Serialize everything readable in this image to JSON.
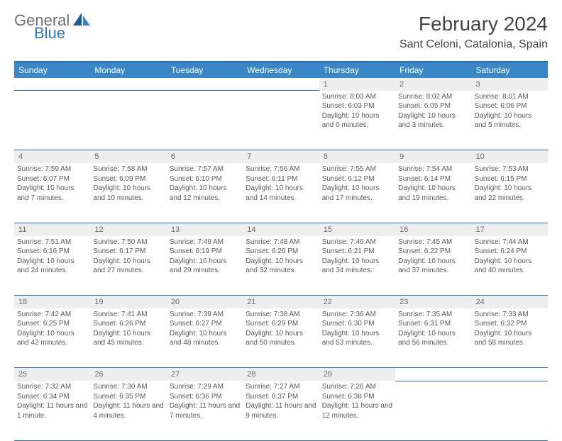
{
  "logo": {
    "text1": "General",
    "text2": "Blue"
  },
  "title": "February 2024",
  "location": "Sant Celoni, Catalonia, Spain",
  "colors": {
    "header_bg": "#3a87c8",
    "header_border": "#2f6fa8",
    "daynum_bg": "#eeeeee",
    "text": "#5a5a5a",
    "logo_gray": "#707070",
    "logo_blue": "#2f78b8"
  },
  "weekdays": [
    "Sunday",
    "Monday",
    "Tuesday",
    "Wednesday",
    "Thursday",
    "Friday",
    "Saturday"
  ],
  "weeks": [
    [
      null,
      null,
      null,
      null,
      {
        "day": "1",
        "sunrise": "Sunrise: 8:03 AM",
        "sunset": "Sunset: 6:03 PM",
        "daylight": "Daylight: 10 hours and 0 minutes."
      },
      {
        "day": "2",
        "sunrise": "Sunrise: 8:02 AM",
        "sunset": "Sunset: 6:05 PM",
        "daylight": "Daylight: 10 hours and 3 minutes."
      },
      {
        "day": "3",
        "sunrise": "Sunrise: 8:01 AM",
        "sunset": "Sunset: 6:06 PM",
        "daylight": "Daylight: 10 hours and 5 minutes."
      }
    ],
    [
      {
        "day": "4",
        "sunrise": "Sunrise: 7:59 AM",
        "sunset": "Sunset: 6:07 PM",
        "daylight": "Daylight: 10 hours and 7 minutes."
      },
      {
        "day": "5",
        "sunrise": "Sunrise: 7:58 AM",
        "sunset": "Sunset: 6:09 PM",
        "daylight": "Daylight: 10 hours and 10 minutes."
      },
      {
        "day": "6",
        "sunrise": "Sunrise: 7:57 AM",
        "sunset": "Sunset: 6:10 PM",
        "daylight": "Daylight: 10 hours and 12 minutes."
      },
      {
        "day": "7",
        "sunrise": "Sunrise: 7:56 AM",
        "sunset": "Sunset: 6:11 PM",
        "daylight": "Daylight: 10 hours and 14 minutes."
      },
      {
        "day": "8",
        "sunrise": "Sunrise: 7:55 AM",
        "sunset": "Sunset: 6:12 PM",
        "daylight": "Daylight: 10 hours and 17 minutes."
      },
      {
        "day": "9",
        "sunrise": "Sunrise: 7:54 AM",
        "sunset": "Sunset: 6:14 PM",
        "daylight": "Daylight: 10 hours and 19 minutes."
      },
      {
        "day": "10",
        "sunrise": "Sunrise: 7:53 AM",
        "sunset": "Sunset: 6:15 PM",
        "daylight": "Daylight: 10 hours and 22 minutes."
      }
    ],
    [
      {
        "day": "11",
        "sunrise": "Sunrise: 7:51 AM",
        "sunset": "Sunset: 6:16 PM",
        "daylight": "Daylight: 10 hours and 24 minutes."
      },
      {
        "day": "12",
        "sunrise": "Sunrise: 7:50 AM",
        "sunset": "Sunset: 6:17 PM",
        "daylight": "Daylight: 10 hours and 27 minutes."
      },
      {
        "day": "13",
        "sunrise": "Sunrise: 7:49 AM",
        "sunset": "Sunset: 6:19 PM",
        "daylight": "Daylight: 10 hours and 29 minutes."
      },
      {
        "day": "14",
        "sunrise": "Sunrise: 7:48 AM",
        "sunset": "Sunset: 6:20 PM",
        "daylight": "Daylight: 10 hours and 32 minutes."
      },
      {
        "day": "15",
        "sunrise": "Sunrise: 7:46 AM",
        "sunset": "Sunset: 6:21 PM",
        "daylight": "Daylight: 10 hours and 34 minutes."
      },
      {
        "day": "16",
        "sunrise": "Sunrise: 7:45 AM",
        "sunset": "Sunset: 6:22 PM",
        "daylight": "Daylight: 10 hours and 37 minutes."
      },
      {
        "day": "17",
        "sunrise": "Sunrise: 7:44 AM",
        "sunset": "Sunset: 6:24 PM",
        "daylight": "Daylight: 10 hours and 40 minutes."
      }
    ],
    [
      {
        "day": "18",
        "sunrise": "Sunrise: 7:42 AM",
        "sunset": "Sunset: 6:25 PM",
        "daylight": "Daylight: 10 hours and 42 minutes."
      },
      {
        "day": "19",
        "sunrise": "Sunrise: 7:41 AM",
        "sunset": "Sunset: 6:26 PM",
        "daylight": "Daylight: 10 hours and 45 minutes."
      },
      {
        "day": "20",
        "sunrise": "Sunrise: 7:39 AM",
        "sunset": "Sunset: 6:27 PM",
        "daylight": "Daylight: 10 hours and 48 minutes."
      },
      {
        "day": "21",
        "sunrise": "Sunrise: 7:38 AM",
        "sunset": "Sunset: 6:29 PM",
        "daylight": "Daylight: 10 hours and 50 minutes."
      },
      {
        "day": "22",
        "sunrise": "Sunrise: 7:36 AM",
        "sunset": "Sunset: 6:30 PM",
        "daylight": "Daylight: 10 hours and 53 minutes."
      },
      {
        "day": "23",
        "sunrise": "Sunrise: 7:35 AM",
        "sunset": "Sunset: 6:31 PM",
        "daylight": "Daylight: 10 hours and 56 minutes."
      },
      {
        "day": "24",
        "sunrise": "Sunrise: 7:33 AM",
        "sunset": "Sunset: 6:32 PM",
        "daylight": "Daylight: 10 hours and 58 minutes."
      }
    ],
    [
      {
        "day": "25",
        "sunrise": "Sunrise: 7:32 AM",
        "sunset": "Sunset: 6:34 PM",
        "daylight": "Daylight: 11 hours and 1 minute."
      },
      {
        "day": "26",
        "sunrise": "Sunrise: 7:30 AM",
        "sunset": "Sunset: 6:35 PM",
        "daylight": "Daylight: 11 hours and 4 minutes."
      },
      {
        "day": "27",
        "sunrise": "Sunrise: 7:29 AM",
        "sunset": "Sunset: 6:36 PM",
        "daylight": "Daylight: 11 hours and 7 minutes."
      },
      {
        "day": "28",
        "sunrise": "Sunrise: 7:27 AM",
        "sunset": "Sunset: 6:37 PM",
        "daylight": "Daylight: 11 hours and 9 minutes."
      },
      {
        "day": "29",
        "sunrise": "Sunrise: 7:26 AM",
        "sunset": "Sunset: 6:38 PM",
        "daylight": "Daylight: 11 hours and 12 minutes."
      },
      null,
      null
    ]
  ]
}
